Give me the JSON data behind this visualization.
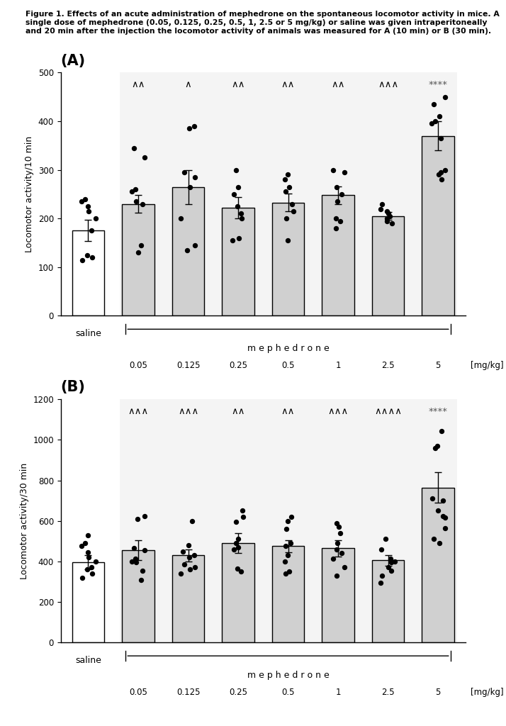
{
  "figure_caption": "Figure 1. Effects of an acute administration of mephedrone on the spontaneous locomotor activity in mice. A single dose of mephedrone (0.05, 0.125, 0.25, 0.5, 1, 2.5 or 5 mg/kg) or saline was given intraperitoneally and 20 min after the injection the locomotor activity of animals was measured for A (10 min) or B (30 min).",
  "panel_A": {
    "label": "(A)",
    "ylabel": "Locomotor activity/10 min",
    "ylim": [
      0,
      500
    ],
    "yticks": [
      0,
      100,
      200,
      300,
      400,
      500
    ],
    "bar_means": [
      175,
      230,
      265,
      222,
      233,
      248,
      205,
      370
    ],
    "bar_errors": [
      22,
      18,
      35,
      22,
      18,
      18,
      8,
      30
    ],
    "bar_colors": [
      "white",
      "#d0d0d0",
      "#d0d0d0",
      "#d0d0d0",
      "#d0d0d0",
      "#d0d0d0",
      "#d0d0d0",
      "#d0d0d0"
    ],
    "bar_edge_colors": [
      "black",
      "black",
      "black",
      "black",
      "black",
      "black",
      "black",
      "black"
    ],
    "significance_labels": [
      "∧∧",
      "∧",
      "∧∧",
      "∧∧",
      "∧∧",
      "∧∧∧",
      "****"
    ],
    "sig_positions": [
      1,
      2,
      3,
      4,
      5,
      6,
      7
    ],
    "dots_A": [
      [
        115,
        120,
        125,
        175,
        200,
        215,
        225,
        235,
        240
      ],
      [
        130,
        145,
        230,
        235,
        255,
        260,
        325,
        345
      ],
      [
        135,
        145,
        200,
        265,
        285,
        295,
        385,
        390
      ],
      [
        155,
        160,
        200,
        210,
        225,
        250,
        265,
        300
      ],
      [
        155,
        200,
        215,
        230,
        255,
        265,
        280,
        290
      ],
      [
        180,
        195,
        200,
        235,
        250,
        265,
        295,
        300
      ],
      [
        190,
        195,
        200,
        205,
        210,
        215,
        220,
        230
      ],
      [
        280,
        290,
        295,
        300,
        365,
        395,
        400,
        410,
        435,
        450
      ]
    ]
  },
  "panel_B": {
    "label": "(B)",
    "ylabel": "Locomotor activity/30 min",
    "ylim": [
      0,
      1200
    ],
    "yticks": [
      0,
      200,
      400,
      600,
      800,
      1000,
      1200
    ],
    "bar_means": [
      395,
      455,
      430,
      490,
      475,
      465,
      405,
      765
    ],
    "bar_errors": [
      35,
      50,
      30,
      50,
      30,
      40,
      25,
      75
    ],
    "bar_colors": [
      "white",
      "#d0d0d0",
      "#d0d0d0",
      "#d0d0d0",
      "#d0d0d0",
      "#d0d0d0",
      "#d0d0d0",
      "#d0d0d0"
    ],
    "bar_edge_colors": [
      "black",
      "black",
      "black",
      "black",
      "black",
      "black",
      "black",
      "black"
    ],
    "significance_labels": [
      "∧∧∧",
      "∧∧∧",
      "∧∧",
      "∧∧",
      "∧∧∧",
      "∧∧∧∧",
      "****"
    ],
    "sig_positions": [
      1,
      2,
      3,
      4,
      5,
      6,
      7
    ],
    "dots_B": [
      [
        320,
        340,
        360,
        370,
        400,
        420,
        445,
        475,
        490,
        530
      ],
      [
        310,
        355,
        395,
        400,
        415,
        455,
        465,
        610,
        625
      ],
      [
        340,
        360,
        370,
        385,
        420,
        430,
        450,
        480,
        600
      ],
      [
        350,
        365,
        460,
        470,
        490,
        510,
        595,
        620,
        650
      ],
      [
        340,
        350,
        400,
        430,
        475,
        490,
        560,
        600,
        620
      ],
      [
        330,
        370,
        415,
        440,
        460,
        490,
        540,
        570,
        590
      ],
      [
        295,
        330,
        355,
        370,
        395,
        400,
        415,
        460,
        510
      ],
      [
        490,
        510,
        565,
        615,
        625,
        650,
        700,
        710,
        960,
        970,
        1045
      ]
    ]
  },
  "dose_labels": [
    "0.05",
    "0.125",
    "0.25",
    "0.5",
    "1",
    "2.5",
    "5"
  ],
  "unit_label": "[mg/kg]",
  "background_shading": "#e0e0e0",
  "background_shading_alpha": 0.35
}
